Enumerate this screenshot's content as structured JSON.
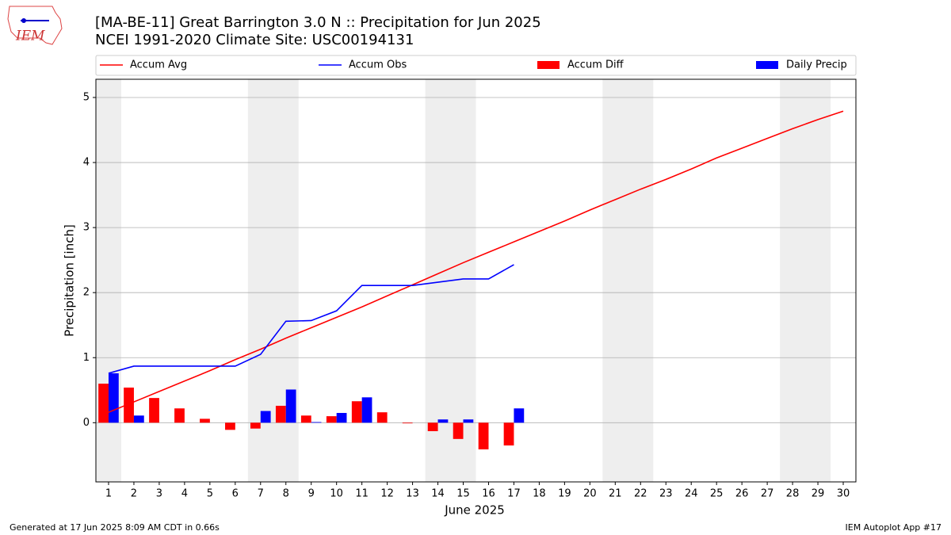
{
  "chart_data": {
    "type": "combo",
    "title": "[MA-BE-11] Great Barrington 3.0 N :: Precipitation for Jun 2025",
    "subtitle": "NCEI 1991-2020 Climate Site: USC00194131",
    "logo_text": "IEM",
    "x_label": "June 2025",
    "y_label": "Precipitation [inch]",
    "footer_left": "Generated at 17 Jun 2025 8:09 AM CDT in 0.66s",
    "footer_right": "IEM Autoplot App #17",
    "x": [
      1,
      2,
      3,
      4,
      5,
      6,
      7,
      8,
      9,
      10,
      11,
      12,
      13,
      14,
      15,
      16,
      17,
      18,
      19,
      20,
      21,
      22,
      23,
      24,
      25,
      26,
      27,
      28,
      29,
      30
    ],
    "xticks": [
      1,
      2,
      3,
      4,
      5,
      6,
      7,
      8,
      9,
      10,
      11,
      12,
      13,
      14,
      15,
      16,
      17,
      18,
      19,
      20,
      21,
      22,
      23,
      24,
      25,
      26,
      27,
      28,
      29,
      30
    ],
    "xlim": [
      0.5,
      30.5
    ],
    "ylim": [
      -0.91,
      5.28
    ],
    "yticks": [
      0,
      1,
      2,
      3,
      4,
      5
    ],
    "grid": true,
    "shaded_ranges": [
      [
        0.5,
        1.5
      ],
      [
        6.5,
        8.5
      ],
      [
        13.5,
        15.5
      ],
      [
        20.5,
        22.5
      ],
      [
        27.5,
        29.5
      ]
    ],
    "shade_color": "#eeeeee",
    "series": [
      {
        "name": "Accum Avg",
        "kind": "line",
        "color": "#ff0000",
        "values": [
          0.16,
          0.32,
          0.48,
          0.64,
          0.8,
          0.97,
          1.13,
          1.3,
          1.46,
          1.62,
          1.78,
          1.95,
          2.12,
          2.29,
          2.46,
          2.62,
          2.78,
          2.94,
          3.1,
          3.27,
          3.43,
          3.59,
          3.74,
          3.9,
          4.07,
          4.22,
          4.37,
          4.52,
          4.66,
          4.79
        ]
      },
      {
        "name": "Accum Obs",
        "kind": "line",
        "color": "#0000ff",
        "values": [
          0.76,
          0.87,
          0.87,
          0.87,
          0.87,
          0.87,
          1.05,
          1.56,
          1.57,
          1.72,
          2.11,
          2.11,
          2.11,
          2.16,
          2.21,
          2.21,
          2.43,
          null,
          null,
          null,
          null,
          null,
          null,
          null,
          null,
          null,
          null,
          null,
          null,
          null
        ]
      },
      {
        "name": "Accum Diff",
        "kind": "bar",
        "offset": -0.2,
        "width": 0.4,
        "color": "#ff0000",
        "values": [
          0.6,
          0.54,
          0.38,
          0.22,
          0.06,
          -0.11,
          -0.09,
          0.26,
          0.11,
          0.1,
          0.33,
          0.16,
          -0.01,
          -0.13,
          -0.25,
          -0.41,
          -0.35,
          null,
          null,
          null,
          null,
          null,
          null,
          null,
          null,
          null,
          null,
          null,
          null,
          null
        ]
      },
      {
        "name": "Daily Precip",
        "kind": "bar",
        "offset": 0.2,
        "width": 0.4,
        "color": "#0000ff",
        "values": [
          0.76,
          0.11,
          0,
          0,
          0,
          0,
          0.18,
          0.51,
          0.01,
          0.15,
          0.39,
          0,
          0,
          0.05,
          0.05,
          0,
          0.22,
          null,
          null,
          null,
          null,
          null,
          null,
          null,
          null,
          null,
          null,
          null,
          null,
          null
        ]
      }
    ]
  }
}
